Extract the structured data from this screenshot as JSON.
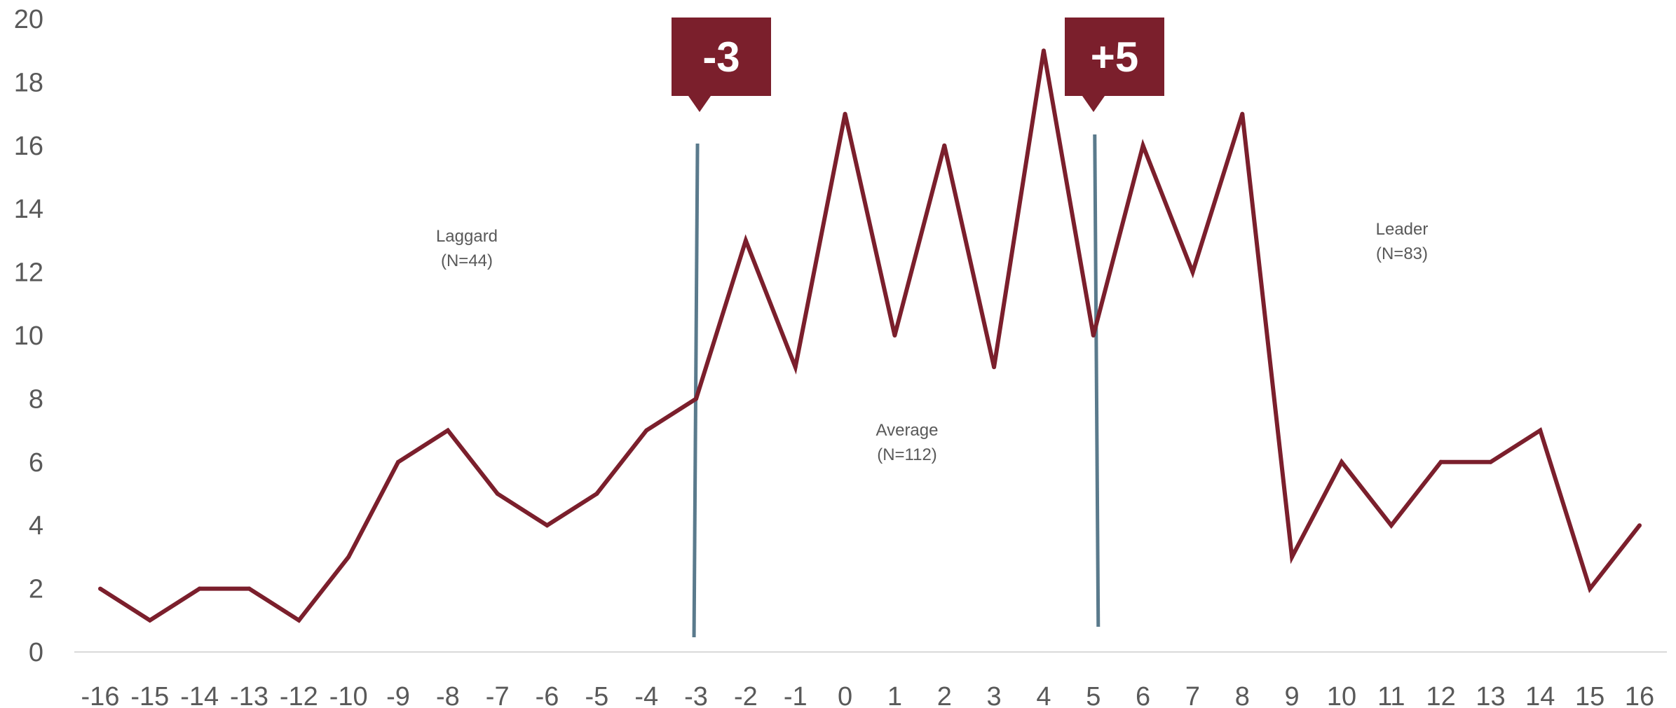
{
  "chart_data": {
    "type": "line",
    "x": [
      "-16",
      "-15",
      "-14",
      "-13",
      "-12",
      "-10",
      "-9",
      "-8",
      "-7",
      "-6",
      "-5",
      "-4",
      "-3",
      "-2",
      "-1",
      "0",
      "1",
      "2",
      "3",
      "4",
      "5",
      "6",
      "7",
      "8",
      "9",
      "10",
      "11",
      "12",
      "13",
      "14",
      "15",
      "16"
    ],
    "values": [
      2,
      1,
      2,
      2,
      1,
      3,
      6,
      7,
      5,
      4,
      5,
      7,
      8,
      13,
      9,
      17,
      10,
      16,
      9,
      19,
      10,
      16,
      12,
      17,
      3,
      6,
      4,
      6,
      6,
      7,
      2,
      4
    ],
    "ylim": [
      0,
      20
    ],
    "y_ticks": [
      "0",
      "2",
      "4",
      "6",
      "8",
      "10",
      "12",
      "14",
      "16",
      "18",
      "20"
    ],
    "grid": false,
    "series_color": "#7b1f2c",
    "threshold_color": "#5a7a8c",
    "thresholds": [
      {
        "label": "-3",
        "at_category": "-3"
      },
      {
        "label": "+5",
        "at_category": "5"
      }
    ],
    "regions": [
      {
        "name": "Laggard",
        "n": "(N=44)"
      },
      {
        "name": "Average",
        "n": "(N=112)"
      },
      {
        "name": "Leader",
        "n": "(N=83)"
      }
    ]
  }
}
